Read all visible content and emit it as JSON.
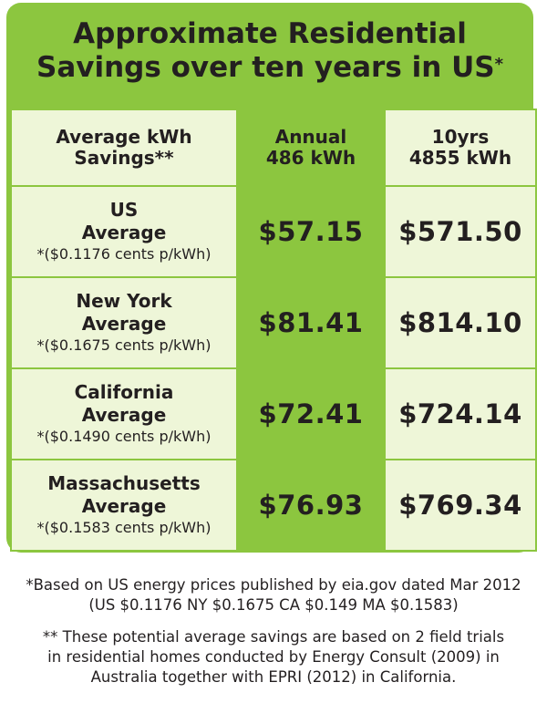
{
  "title": {
    "line1": "Approximate Residential",
    "line2": "Savings over ten years in US",
    "marker": "*"
  },
  "table": {
    "header": {
      "label_line1": "Average kWh",
      "label_line2": "Savings**",
      "annual_line1": "Annual",
      "annual_line2": "486 kWh",
      "ten_line1": "10yrs",
      "ten_line2": "4855 kWh"
    },
    "rows": [
      {
        "name_line1": "US",
        "name_line2": "Average",
        "rate": "*($0.1176 cents p/kWh)",
        "annual": "$57.15",
        "ten_years": "$571.50"
      },
      {
        "name_line1": "New York",
        "name_line2": "Average",
        "rate": "*($0.1675 cents p/kWh)",
        "annual": "$81.41",
        "ten_years": "$814.10"
      },
      {
        "name_line1": "California",
        "name_line2": "Average",
        "rate": "*($0.1490 cents p/kWh)",
        "annual": "$72.41",
        "ten_years": "$724.14"
      },
      {
        "name_line1": "Massachusetts",
        "name_line2": "Average",
        "rate": "*($0.1583 cents p/kWh)",
        "annual": "$76.93",
        "ten_years": "$769.34"
      }
    ]
  },
  "footnotes": {
    "note1_line1": "*Based on US energy prices published by eia.gov dated Mar 2012",
    "note1_line2": "(US $0.1176 NY $0.1675 CA $0.149 MA $0.1583)",
    "note2_line1": "** These potential average savings are based on 2 field trials",
    "note2_line2": "in residential homes conducted by Energy Consult (2009) in",
    "note2_line3": "Australia together with EPRI (2012) in California."
  },
  "colors": {
    "green": "#8cc63f",
    "pale_green": "#eef6d8",
    "text": "#231f20"
  }
}
